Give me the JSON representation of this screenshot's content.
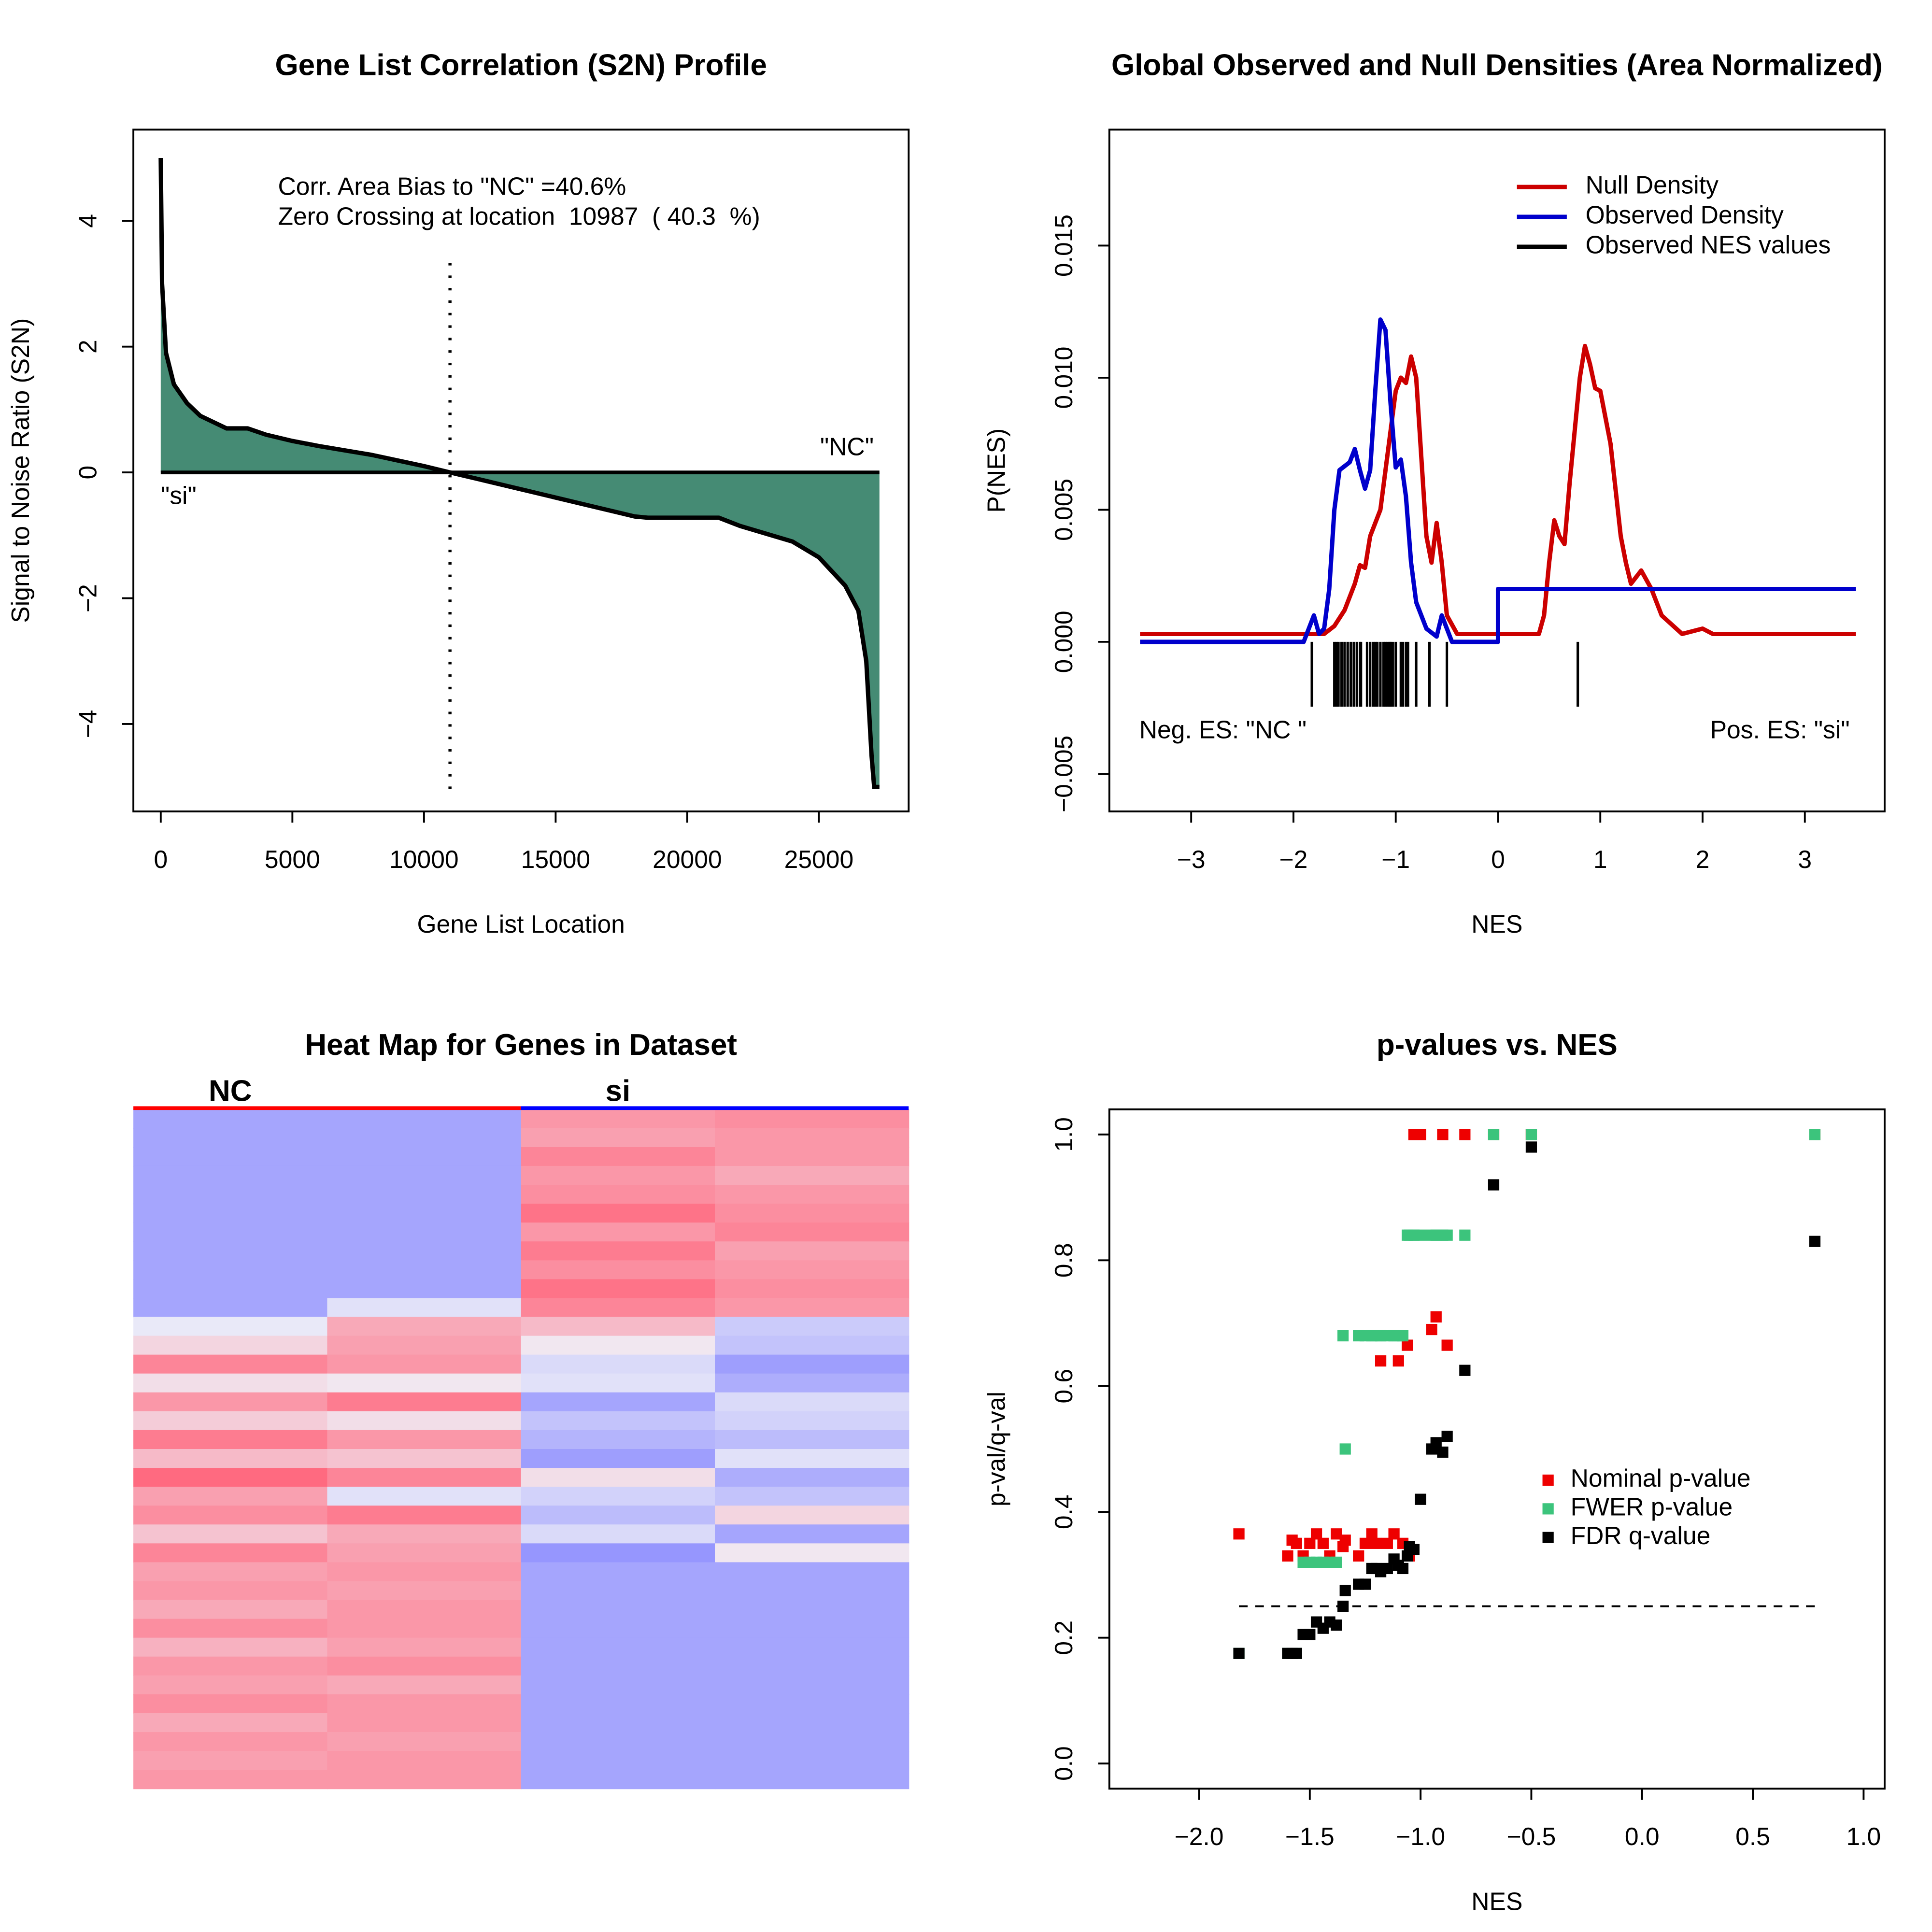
{
  "chart_data": [
    {
      "type": "area",
      "title": "Gene List Correlation (S2N) Profile",
      "x_label": "Gene List Location",
      "y_label": "Signal to Noise Ratio (S2N)",
      "annotations": [
        "Corr. Area Bias to \"NC\" =40.6%",
        "Zero Crossing at location  10987  ( 40.3  %)"
      ],
      "right_label": "\"NC\"",
      "left_label": "\"si\"",
      "zero_crossing": 10987,
      "color": "#458b74",
      "x": [
        0,
        50,
        200,
        500,
        1000,
        1500,
        2000,
        2500,
        3300,
        4000,
        5000,
        6000,
        8000,
        10000,
        10987,
        12000,
        14000,
        16000,
        18000,
        18500,
        21200,
        22000,
        24000,
        25000,
        26000,
        26500,
        26800,
        27000,
        27100,
        27300
      ],
      "values": [
        5,
        3,
        1.9,
        1.4,
        1.1,
        0.9,
        0.8,
        0.7,
        0.7,
        0.6,
        0.5,
        0.42,
        0.28,
        0.1,
        0,
        -0.1,
        -0.3,
        -0.5,
        -0.7,
        -0.72,
        -0.72,
        -0.85,
        -1.1,
        -1.35,
        -1.8,
        -2.2,
        -3,
        -4.5,
        -5,
        -5
      ],
      "xlim": [
        -1040,
        28410
      ],
      "ylim": [
        -5.39,
        5.45
      ],
      "xticks": [
        0,
        5000,
        10000,
        15000,
        20000,
        25000
      ],
      "yticks": [
        {
          "value": -4,
          "label": "−4"
        },
        {
          "value": -2,
          "label": "−2"
        },
        0,
        2,
        4
      ]
    },
    {
      "type": "density",
      "title": "Global Observed and Null Densities (Area Normalized)",
      "x_label": "NES",
      "y_label": "P(NES)",
      "series": [
        {
          "name": "Null Density",
          "color": "#cc0000",
          "x": [
            -3.5,
            -1.7,
            -1.6,
            -1.5,
            -1.4,
            -1.35,
            -1.3,
            -1.25,
            -1.15,
            -1.1,
            -1.0,
            -0.95,
            -0.9,
            -0.85,
            -0.8,
            -0.75,
            -0.7,
            -0.65,
            -0.6,
            -0.55,
            -0.5,
            -0.4,
            0.4,
            0.45,
            0.5,
            0.55,
            0.6,
            0.65,
            0.7,
            0.8,
            0.85,
            0.9,
            0.95,
            1.0,
            1.1,
            1.2,
            1.25,
            1.3,
            1.4,
            1.5,
            1.6,
            1.8,
            2.0,
            2.1,
            3.5
          ],
          "values": [
            0.0003,
            0.0003,
            0.0006,
            0.0012,
            0.0022,
            0.0029,
            0.0028,
            0.004,
            0.005,
            0.0065,
            0.0095,
            0.01,
            0.0098,
            0.0108,
            0.01,
            0.007,
            0.004,
            0.003,
            0.0045,
            0.003,
            0.001,
            0.0003,
            0.0003,
            0.001,
            0.003,
            0.0046,
            0.004,
            0.0037,
            0.006,
            0.01,
            0.0112,
            0.0105,
            0.0096,
            0.0095,
            0.0075,
            0.004,
            0.003,
            0.0022,
            0.0027,
            0.002,
            0.001,
            0.0003,
            0.0005,
            0.0003,
            0.0003
          ]
        },
        {
          "name": "Observed Density",
          "color": "#0000cc",
          "x": [
            -3.5,
            -1.9,
            -1.85,
            -1.8,
            -1.75,
            -1.7,
            -1.65,
            -1.6,
            -1.55,
            -1.45,
            -1.4,
            -1.35,
            -1.3,
            -1.25,
            -1.2,
            -1.15,
            -1.1,
            -1.05,
            -1.0,
            -0.95,
            -0.9,
            -0.85,
            -0.8,
            -0.7,
            -0.6,
            -0.55,
            -0.5,
            -0.45,
            0,
            0,
            3.5
          ],
          "values": [
            0,
            0,
            0.0005,
            0.001,
            0.0003,
            0.0005,
            0.002,
            0.005,
            0.0065,
            0.0068,
            0.0073,
            0.0065,
            0.0058,
            0.0065,
            0.0095,
            0.0122,
            0.0118,
            0.009,
            0.0066,
            0.0069,
            0.0055,
            0.003,
            0.0015,
            0.0005,
            0.0002,
            0.001,
            0.0005,
            0,
            0,
            0.002,
            0.002
          ]
        }
      ],
      "rug": {
        "name": "Observed NES values",
        "color": "#000000",
        "values": [
          -1.82,
          -1.6,
          -1.58,
          -1.56,
          -1.53,
          -1.5,
          -1.47,
          -1.44,
          -1.41,
          -1.38,
          -1.35,
          -1.34,
          -1.28,
          -1.25,
          -1.22,
          -1.2,
          -1.18,
          -1.15,
          -1.12,
          -1.1,
          -1.08,
          -1.06,
          -1.05,
          -1.03,
          -1.0,
          -0.95,
          -0.93,
          -0.9,
          -0.88,
          -0.8,
          -0.67,
          -0.5,
          0.78
        ]
      },
      "left_note": "Neg. ES: \"NC \"",
      "right_note": "Pos. ES: \"si\"",
      "legend": "top-right",
      "xlim": [
        -3.8,
        3.78
      ],
      "ylim": [
        -0.00642,
        0.01939
      ],
      "xticks": [
        {
          "value": -3,
          "label": "−3"
        },
        {
          "value": -2,
          "label": "−2"
        },
        {
          "value": -1,
          "label": "−1"
        },
        0,
        1,
        2,
        3
      ],
      "yticks": [
        {
          "value": -0.005,
          "label": "−0.005"
        },
        {
          "value": 0,
          "label": "0.000"
        },
        0.005,
        {
          "value": 0.01,
          "label": "0.010"
        },
        0.015
      ]
    },
    {
      "type": "heatmap",
      "title": "Heat Map for Genes in Dataset",
      "groups": [
        {
          "name": "NC",
          "color": "#ff0000"
        },
        {
          "name": "si",
          "color": "#0000ff"
        }
      ],
      "zlim": [
        -1.5,
        1.5
      ],
      "palette": [
        "#8080ff",
        "#f0f0f8",
        "#ff6a80"
      ],
      "rows": [
        [
          -1,
          -1,
          1,
          1.1
        ],
        [
          -1,
          -1,
          0.9,
          1
        ],
        [
          -1,
          -1,
          1.2,
          1
        ],
        [
          -1,
          -1,
          1,
          0.8
        ],
        [
          -1,
          -1,
          1.1,
          1
        ],
        [
          -1,
          -1,
          1.4,
          1.1
        ],
        [
          -1,
          -1,
          1,
          1.2
        ],
        [
          -1,
          -1,
          1.3,
          0.9
        ],
        [
          -1,
          -1,
          1.1,
          1
        ],
        [
          -1,
          -1,
          1.4,
          1.1
        ],
        [
          -1,
          -0.2,
          1.2,
          1
        ],
        [
          -0.1,
          0.8,
          0.6,
          -0.5
        ],
        [
          0.3,
          0.9,
          0.1,
          -0.6
        ],
        [
          1.2,
          1.0,
          -0.3,
          -1.1
        ],
        [
          0.2,
          0.1,
          -0.2,
          -0.9
        ],
        [
          1.0,
          1.3,
          -1.0,
          -0.3
        ],
        [
          0.4,
          0.2,
          -0.6,
          -0.4
        ],
        [
          1.3,
          1.0,
          -0.8,
          -0.7
        ],
        [
          0.6,
          0.5,
          -1.1,
          -0.2
        ],
        [
          1.5,
          1.2,
          0.2,
          -0.9
        ],
        [
          0.9,
          -0.2,
          -0.4,
          -0.6
        ],
        [
          1.1,
          1.3,
          -0.7,
          0.3
        ],
        [
          0.5,
          0.8,
          -0.3,
          -1.0
        ],
        [
          1.2,
          0.9,
          -1.2,
          0.1
        ],
        [
          0.9,
          1.0,
          -1,
          -1
        ],
        [
          1.0,
          0.9,
          -1,
          -1
        ],
        [
          0.8,
          1.0,
          -1,
          -1
        ],
        [
          1.1,
          1.0,
          -1,
          -1
        ],
        [
          0.7,
          0.9,
          -1,
          -1
        ],
        [
          1.0,
          1.1,
          -1,
          -1
        ],
        [
          0.9,
          0.8,
          -1,
          -1
        ],
        [
          1.1,
          1.0,
          -1,
          -1
        ],
        [
          0.8,
          1.0,
          -1,
          -1
        ],
        [
          1.0,
          0.9,
          -1,
          -1
        ],
        [
          0.9,
          1.0,
          -1,
          -1
        ],
        [
          1.0,
          1.0,
          -1,
          -1
        ]
      ]
    },
    {
      "type": "scatter",
      "title": "p-values vs. NES",
      "x_label": "NES",
      "y_label": "p-val/q-val",
      "x": [
        -1.82,
        -1.6,
        -1.58,
        -1.56,
        -1.53,
        -1.5,
        -1.47,
        -1.44,
        -1.41,
        -1.38,
        -1.35,
        -1.34,
        -1.28,
        -1.25,
        -1.22,
        -1.2,
        -1.18,
        -1.15,
        -1.12,
        -1.1,
        -1.08,
        -1.06,
        -1.05,
        -1.03,
        -1.0,
        -0.95,
        -0.93,
        -0.9,
        -0.88,
        -0.8,
        -0.67,
        -0.5,
        0.78
      ],
      "series": [
        {
          "name": "Nominal p-value",
          "color": "#ee0000",
          "values": [
            0.365,
            0.33,
            0.355,
            0.35,
            0.33,
            0.35,
            0.365,
            0.35,
            0.33,
            0.365,
            0.345,
            0.355,
            0.33,
            0.35,
            0.365,
            0.35,
            0.64,
            0.35,
            0.365,
            0.64,
            0.35,
            0.665,
            0.33,
            1,
            1,
            0.69,
            0.71,
            1,
            0.665,
            1,
            1,
            1,
            1
          ]
        },
        {
          "name": "FWER p-value",
          "color": "#3cc47c",
          "values": [
            0.175,
            0.175,
            0.175,
            0.175,
            0.32,
            0.32,
            0.32,
            0.32,
            0.32,
            0.32,
            0.68,
            0.5,
            0.68,
            0.68,
            0.68,
            0.68,
            0.68,
            0.68,
            0.68,
            0.68,
            0.68,
            0.84,
            0.84,
            0.84,
            0.84,
            0.84,
            0.84,
            0.84,
            0.84,
            0.84,
            1,
            1,
            1
          ]
        },
        {
          "name": "FDR q-value",
          "color": "#000000",
          "values": [
            0.175,
            0.175,
            0.175,
            0.175,
            0.205,
            0.205,
            0.225,
            0.215,
            0.225,
            0.22,
            0.25,
            0.275,
            0.285,
            0.285,
            0.31,
            0.31,
            0.305,
            0.31,
            0.325,
            0.315,
            0.31,
            0.33,
            0.345,
            0.34,
            0.42,
            0.5,
            0.51,
            0.495,
            0.52,
            0.625,
            0.92,
            0.98,
            0.83
          ]
        }
      ],
      "threshold": 0.25,
      "legend": "right",
      "xlim": [
        -2.405,
        1.095
      ],
      "ylim": [
        -0.04,
        1.04
      ],
      "xticks": [
        {
          "value": -2,
          "label": "−2.0"
        },
        {
          "value": -1.5,
          "label": "−1.5"
        },
        {
          "value": -1,
          "label": "−1.0"
        },
        {
          "value": -0.5,
          "label": "−0.5"
        },
        {
          "value": 0,
          "label": "0.0"
        },
        0.5,
        {
          "value": 1,
          "label": "1.0"
        }
      ],
      "yticks": [
        {
          "value": 0,
          "label": "0.0"
        },
        0.2,
        0.4,
        0.6,
        0.8,
        {
          "value": 1,
          "label": "1.0"
        }
      ]
    }
  ]
}
